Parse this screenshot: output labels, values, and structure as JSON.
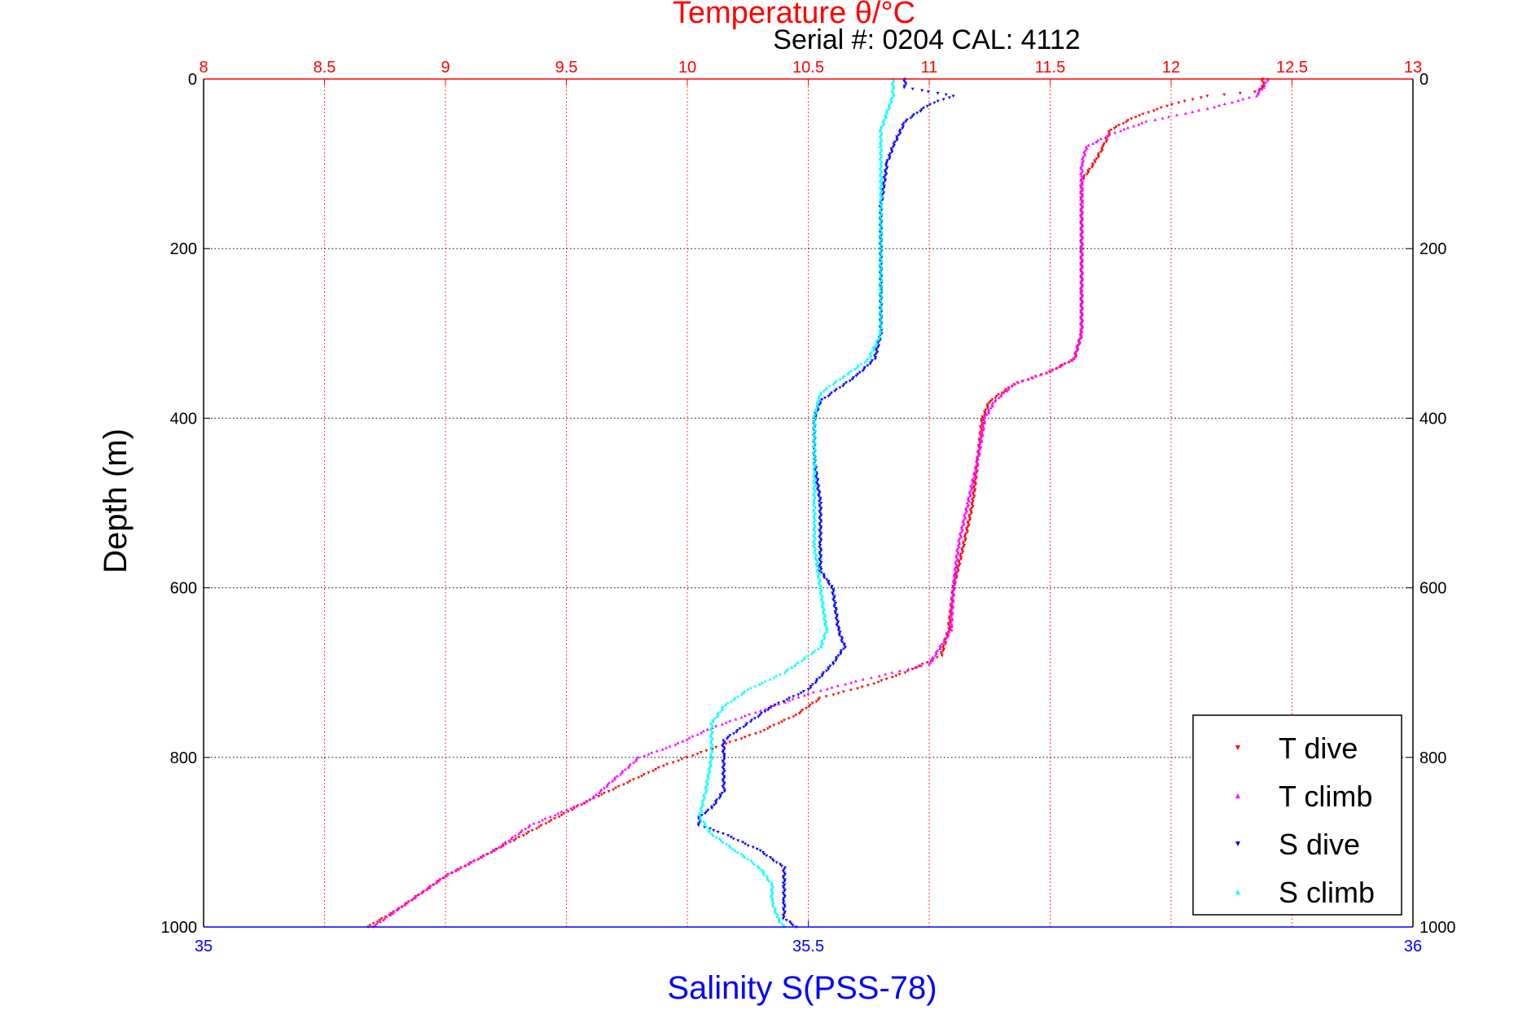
{
  "colors": {
    "temperature": "#ff0000",
    "salinity": "#0000ff",
    "t_dive": "#ff0000",
    "t_climb": "#ff00ff",
    "s_dive": "#0000ff",
    "s_climb": "#00ffff",
    "grid_temp": "#ff0000",
    "grid_depth": "#000000"
  },
  "chart_data": {
    "type": "scatter",
    "title": "Temperature θ/°C",
    "subtitle": "Serial #: 0204  CAL: 4112",
    "ylabel": "Depth (m)",
    "xlabel": "Salinity S(PSS-78)",
    "temperature_axis": {
      "lim": [
        8,
        13
      ],
      "ticks": [
        "8",
        "8.5",
        "9",
        "9.5",
        "10",
        "10.5",
        "11",
        "11.5",
        "12",
        "12.5",
        "13"
      ]
    },
    "salinity_axis": {
      "lim": [
        35,
        36
      ],
      "ticks": [
        "35",
        "35.5",
        "36"
      ]
    },
    "depth_axis": {
      "lim": [
        0,
        1000
      ],
      "reversed": true,
      "ticks": [
        "0",
        "200",
        "400",
        "600",
        "800",
        "1000"
      ]
    },
    "grid": true,
    "legend": {
      "position": "bottom-right",
      "entries": [
        "T dive",
        "T climb",
        "S dive",
        "S climb"
      ]
    },
    "series": [
      {
        "name": "T dive",
        "axis": "temperature",
        "marker": "triangle-down",
        "points": [
          [
            12.38,
            0
          ],
          [
            12.38,
            10
          ],
          [
            12.35,
            15
          ],
          [
            12.15,
            20
          ],
          [
            12.0,
            30
          ],
          [
            11.85,
            45
          ],
          [
            11.75,
            60
          ],
          [
            11.72,
            80
          ],
          [
            11.68,
            100
          ],
          [
            11.63,
            120
          ],
          [
            11.63,
            150
          ],
          [
            11.63,
            200
          ],
          [
            11.63,
            250
          ],
          [
            11.63,
            300
          ],
          [
            11.6,
            330
          ],
          [
            11.5,
            345
          ],
          [
            11.35,
            360
          ],
          [
            11.25,
            380
          ],
          [
            11.22,
            400
          ],
          [
            11.2,
            450
          ],
          [
            11.18,
            500
          ],
          [
            11.15,
            540
          ],
          [
            11.1,
            600
          ],
          [
            11.08,
            650
          ],
          [
            11.05,
            680
          ],
          [
            10.9,
            700
          ],
          [
            10.75,
            715
          ],
          [
            10.55,
            730
          ],
          [
            10.45,
            750
          ],
          [
            10.3,
            770
          ],
          [
            10.1,
            790
          ],
          [
            9.9,
            810
          ],
          [
            9.6,
            850
          ],
          [
            9.4,
            880
          ],
          [
            9.2,
            910
          ],
          [
            9.0,
            940
          ],
          [
            8.9,
            960
          ],
          [
            8.8,
            980
          ],
          [
            8.68,
            1000
          ]
        ]
      },
      {
        "name": "T climb",
        "axis": "temperature",
        "marker": "triangle-up",
        "points": [
          [
            12.4,
            0
          ],
          [
            12.38,
            10
          ],
          [
            12.35,
            20
          ],
          [
            12.15,
            35
          ],
          [
            11.9,
            50
          ],
          [
            11.75,
            65
          ],
          [
            11.65,
            80
          ],
          [
            11.63,
            100
          ],
          [
            11.63,
            150
          ],
          [
            11.63,
            200
          ],
          [
            11.63,
            250
          ],
          [
            11.63,
            300
          ],
          [
            11.6,
            330
          ],
          [
            11.5,
            345
          ],
          [
            11.35,
            360
          ],
          [
            11.27,
            380
          ],
          [
            11.23,
            400
          ],
          [
            11.2,
            450
          ],
          [
            11.16,
            500
          ],
          [
            11.12,
            550
          ],
          [
            11.1,
            600
          ],
          [
            11.09,
            650
          ],
          [
            11.0,
            690
          ],
          [
            10.85,
            700
          ],
          [
            10.7,
            710
          ],
          [
            10.5,
            725
          ],
          [
            10.3,
            745
          ],
          [
            10.1,
            765
          ],
          [
            9.95,
            785
          ],
          [
            9.8,
            800
          ],
          [
            9.6,
            850
          ],
          [
            9.35,
            880
          ],
          [
            9.2,
            910
          ],
          [
            9.0,
            940
          ],
          [
            8.9,
            960
          ],
          [
            8.8,
            980
          ],
          [
            8.7,
            1000
          ]
        ]
      },
      {
        "name": "S dive",
        "axis": "salinity",
        "marker": "triangle-down",
        "points": [
          [
            35.58,
            0
          ],
          [
            35.58,
            10
          ],
          [
            35.6,
            15
          ],
          [
            35.62,
            20
          ],
          [
            35.6,
            30
          ],
          [
            35.58,
            50
          ],
          [
            35.57,
            80
          ],
          [
            35.565,
            100
          ],
          [
            35.56,
            150
          ],
          [
            35.56,
            200
          ],
          [
            35.56,
            250
          ],
          [
            35.56,
            300
          ],
          [
            35.555,
            330
          ],
          [
            35.54,
            350
          ],
          [
            35.52,
            370
          ],
          [
            35.51,
            380
          ],
          [
            35.505,
            400
          ],
          [
            35.505,
            450
          ],
          [
            35.51,
            500
          ],
          [
            35.51,
            550
          ],
          [
            35.51,
            580
          ],
          [
            35.52,
            600
          ],
          [
            35.525,
            650
          ],
          [
            35.53,
            670
          ],
          [
            35.52,
            690
          ],
          [
            35.5,
            720
          ],
          [
            35.47,
            740
          ],
          [
            35.45,
            760
          ],
          [
            35.43,
            780
          ],
          [
            35.43,
            800
          ],
          [
            35.43,
            840
          ],
          [
            35.42,
            860
          ],
          [
            35.41,
            870
          ],
          [
            35.41,
            880
          ],
          [
            35.43,
            890
          ],
          [
            35.46,
            910
          ],
          [
            35.48,
            930
          ],
          [
            35.48,
            950
          ],
          [
            35.48,
            970
          ],
          [
            35.48,
            990
          ],
          [
            35.49,
            1000
          ]
        ]
      },
      {
        "name": "S climb",
        "axis": "salinity",
        "marker": "triangle-up",
        "points": [
          [
            35.57,
            0
          ],
          [
            35.57,
            10
          ],
          [
            35.57,
            20
          ],
          [
            35.565,
            40
          ],
          [
            35.56,
            60
          ],
          [
            35.56,
            80
          ],
          [
            35.56,
            100
          ],
          [
            35.56,
            150
          ],
          [
            35.56,
            200
          ],
          [
            35.56,
            250
          ],
          [
            35.56,
            300
          ],
          [
            35.55,
            330
          ],
          [
            35.53,
            350
          ],
          [
            35.51,
            370
          ],
          [
            35.505,
            400
          ],
          [
            35.505,
            450
          ],
          [
            35.505,
            500
          ],
          [
            35.505,
            550
          ],
          [
            35.51,
            600
          ],
          [
            35.515,
            650
          ],
          [
            35.51,
            670
          ],
          [
            35.48,
            700
          ],
          [
            35.45,
            720
          ],
          [
            35.43,
            740
          ],
          [
            35.42,
            760
          ],
          [
            35.42,
            800
          ],
          [
            35.415,
            840
          ],
          [
            35.41,
            870
          ],
          [
            35.42,
            890
          ],
          [
            35.44,
            910
          ],
          [
            35.46,
            930
          ],
          [
            35.47,
            950
          ],
          [
            35.47,
            970
          ],
          [
            35.475,
            990
          ],
          [
            35.48,
            1000
          ]
        ]
      }
    ]
  }
}
